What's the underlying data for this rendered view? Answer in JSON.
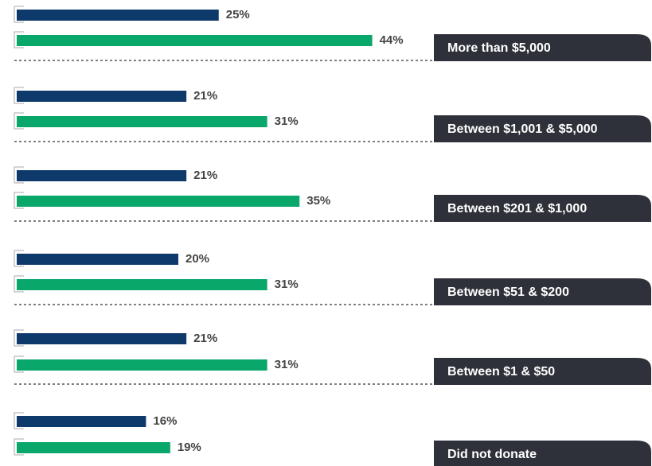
{
  "chart_data": {
    "type": "bar",
    "orientation": "horizontal",
    "categories": [
      "More than $5,000",
      "Between $1,001 & $5,000",
      "Between $201 & $1,000",
      "Between $51 & $200",
      "Between $1 & $50",
      "Did not donate"
    ],
    "series": [
      {
        "color": "#0e3a6b",
        "values": [
          25,
          21,
          21,
          20,
          21,
          16
        ],
        "value_labels": [
          "25%",
          "21%",
          "21%",
          "20%",
          "21%",
          "16%"
        ]
      },
      {
        "color": "#0aa76b",
        "values": [
          44,
          31,
          35,
          31,
          31,
          19
        ],
        "value_labels": [
          "44%",
          "31%",
          "35%",
          "31%",
          "31%",
          "19%"
        ]
      }
    ]
  }
}
